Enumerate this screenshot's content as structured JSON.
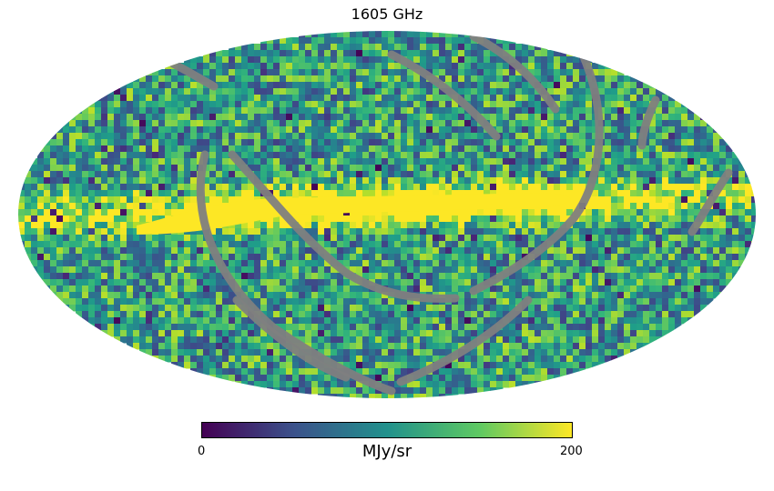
{
  "map": {
    "title": "1605 GHz",
    "projection": "mollweide",
    "colormap": "viridis",
    "masked_color": "#808080",
    "colorbar": {
      "min_label": "0",
      "max_label": "200",
      "unit": "MJy/sr",
      "range": [
        0,
        200
      ],
      "stops": [
        "#440154",
        "#3b528b",
        "#21918c",
        "#5ec962",
        "#fde725"
      ]
    }
  }
}
